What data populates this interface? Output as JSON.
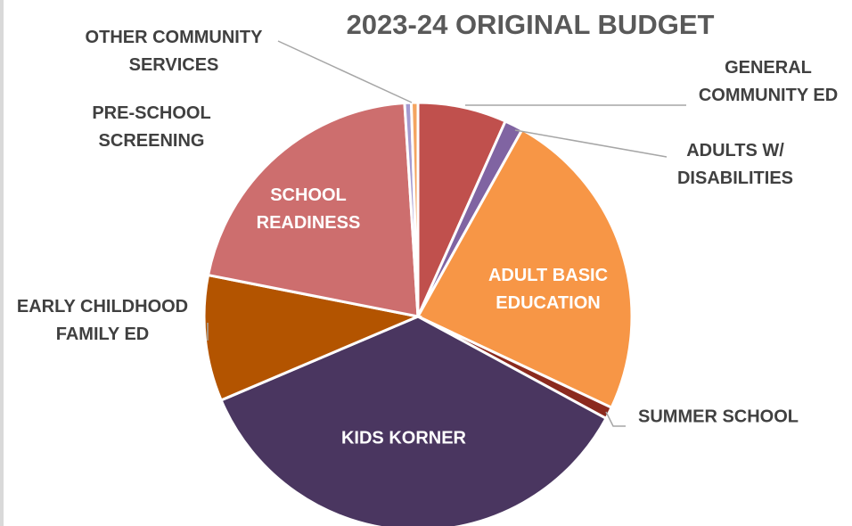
{
  "chart_data": {
    "type": "pie",
    "title": "2023-24 ORIGINAL BUDGET",
    "categories": [
      "GENERAL COMMUNITY ED",
      "ADULTS W/ DISABILITIES",
      "ADULT BASIC EDUCATION",
      "SUMMER SCHOOL",
      "KIDS KORNER",
      "EARLY CHILDHOOD FAMILY ED",
      "SCHOOL READINESS",
      "PRE-SCHOOL SCREENING",
      "OTHER COMMUNITY SERVICES"
    ],
    "values": [
      6.7,
      1.4,
      23.9,
      0.9,
      35.7,
      9.5,
      20.9,
      0.5,
      0.5
    ],
    "colors": [
      "#c0504d",
      "#8064a2",
      "#f79646",
      "#8b2a1e",
      "#4a3660",
      "#b35400",
      "#cd6e6e",
      "#a59ad0",
      "#f4a460"
    ]
  }
}
